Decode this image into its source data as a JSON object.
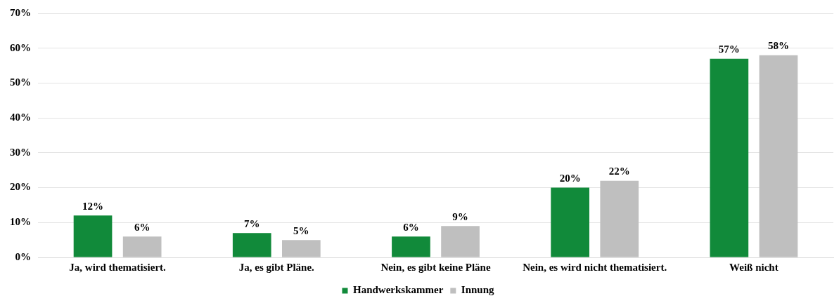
{
  "chart_data": {
    "type": "bar",
    "categories": [
      "Ja, wird thematisiert.",
      "Ja, es gibt Pläne.",
      "Nein, es gibt keine Pläne",
      "Nein, es wird nicht thematisiert.",
      "Weiß nicht"
    ],
    "series": [
      {
        "name": "Handwerkskammer",
        "color": "#118a3a",
        "values": [
          12,
          7,
          6,
          20,
          57
        ],
        "value_labels": [
          "12%",
          "7%",
          "6%",
          "20%",
          "57%"
        ]
      },
      {
        "name": "Innung",
        "color": "#bfbfbf",
        "values": [
          6,
          5,
          9,
          22,
          58
        ],
        "value_labels": [
          "6%",
          "5%",
          "9%",
          "22%",
          "58%"
        ]
      }
    ],
    "ylim": [
      0,
      70
    ],
    "yticks": [
      {
        "value": 0,
        "label": "0%"
      },
      {
        "value": 10,
        "label": "10%"
      },
      {
        "value": 20,
        "label": "20%"
      },
      {
        "value": 30,
        "label": "30%"
      },
      {
        "value": 40,
        "label": "40%"
      },
      {
        "value": 50,
        "label": "50%"
      },
      {
        "value": 60,
        "label": "60%"
      },
      {
        "value": 70,
        "label": "70%"
      }
    ],
    "grid": "y",
    "legend": "bottom"
  }
}
